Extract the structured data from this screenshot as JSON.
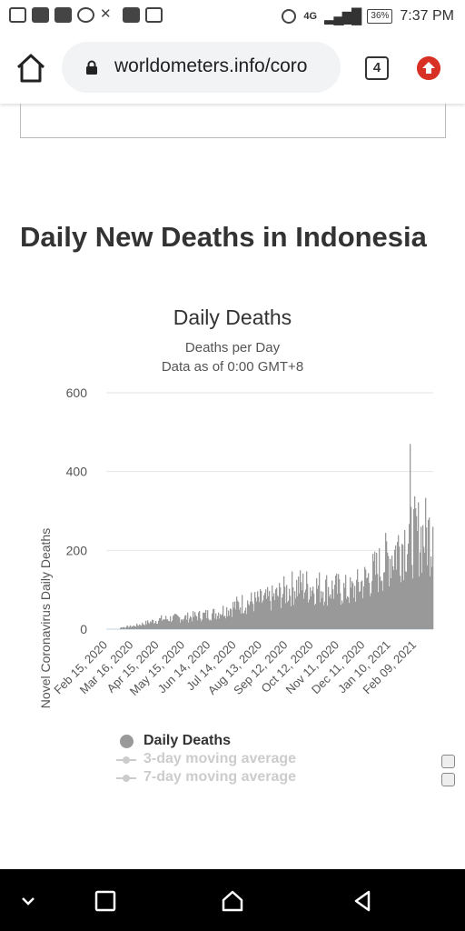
{
  "status_bar": {
    "time": "7:37 PM",
    "battery": "36%",
    "network": "4G",
    "icons": [
      "message-icon",
      "youtube-icon",
      "youtube-icon",
      "whatsapp-icon",
      "vk-icon",
      "gmail-icon",
      "gallery-icon"
    ]
  },
  "browser": {
    "url": "worldometers.info/coro",
    "tab_count": "4",
    "accent": "#d93025"
  },
  "page": {
    "heading": "Daily New Deaths in Indonesia"
  },
  "chart_data": {
    "type": "bar",
    "title": "Daily Deaths",
    "subtitle": "Deaths per Day",
    "subtitle2": "Data as of 0:00 GMT+8",
    "ylabel": "Novel Coronavirus Daily Deaths",
    "ylim": [
      0,
      600
    ],
    "yticks": [
      0,
      200,
      400,
      600
    ],
    "xticks": [
      "Feb 15, 2020",
      "Mar 16, 2020",
      "Apr 15, 2020",
      "May 15, 2020",
      "Jun 14, 2020",
      "Jul 14, 2020",
      "Aug 13, 2020",
      "Sep 12, 2020",
      "Oct 12, 2020",
      "Nov 11, 2020",
      "Dec 11, 2020",
      "Jan 10, 2021",
      "Feb 09, 2021"
    ],
    "bar_color": "#999999",
    "monthly_trend": [
      {
        "period": "Feb 15, 2020",
        "deaths": 0
      },
      {
        "period": "Mar 16, 2020",
        "deaths": 8
      },
      {
        "period": "Apr 15, 2020",
        "deaths": 25
      },
      {
        "period": "May 15, 2020",
        "deaths": 30
      },
      {
        "period": "Jun 14, 2020",
        "deaths": 40
      },
      {
        "period": "Jul 14, 2020",
        "deaths": 65
      },
      {
        "period": "Aug 13, 2020",
        "deaths": 75
      },
      {
        "period": "Sep 12, 2020",
        "deaths": 110
      },
      {
        "period": "Oct 12, 2020",
        "deaths": 105
      },
      {
        "period": "Nov 11, 2020",
        "deaths": 95
      },
      {
        "period": "Dec 11, 2020",
        "deaths": 150
      },
      {
        "period": "Jan 10, 2021",
        "deaths": 230
      },
      {
        "period": "Feb 09, 2021",
        "deaths": 240
      }
    ],
    "peak": 470,
    "last_value": 260,
    "legend": [
      {
        "label": "Daily Deaths",
        "enabled": true
      },
      {
        "label": "3-day moving average",
        "enabled": false
      },
      {
        "label": "7-day moving average",
        "enabled": false
      }
    ]
  }
}
